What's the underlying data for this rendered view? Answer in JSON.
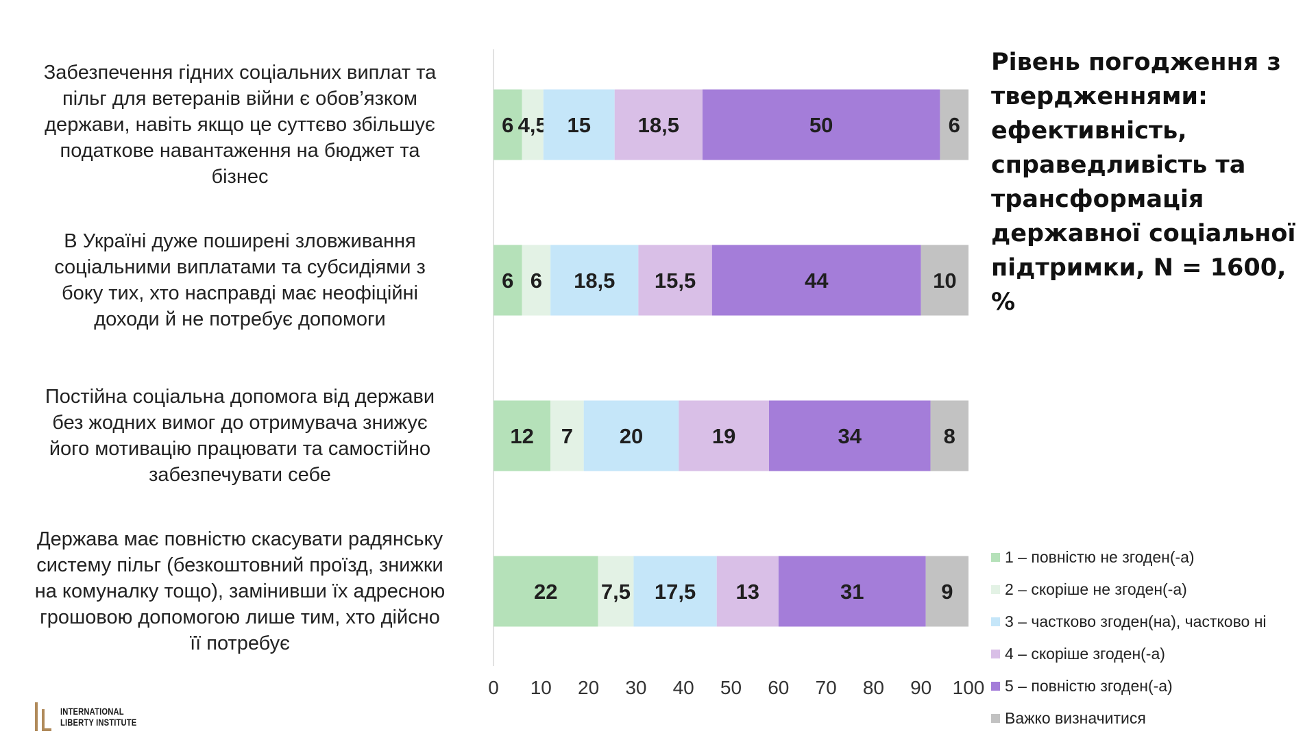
{
  "chart_data": {
    "type": "bar",
    "orientation": "horizontal",
    "stacked": true,
    "title": "Рівень погодження з твердженнями: ефективність, справедливість та трансформація державної соціальної підтримки, N = 1600, %",
    "title_lines": [
      "Рівень погодження з",
      "твердженнями:",
      "ефективність,",
      "справедливість та",
      "трансформація",
      "державної соціальної",
      "підтримки, N = 1600, %"
    ],
    "xlim": [
      0,
      100
    ],
    "xticks": [
      0,
      10,
      20,
      30,
      40,
      50,
      60,
      70,
      80,
      90,
      100
    ],
    "grid": false,
    "legend_position": "bottom-right",
    "categories": [
      "Забезпечення гідних соціальних виплат та пільг для ветеранів війни є обов’язком держави, навіть якщо це суттєво збільшує податкове навантаження на бюджет та бізнес",
      "В Україні дуже поширені зловживання соціальними виплатами та субсидіями з боку тих, хто насправді має неофіційні доходи й не потребує допомоги",
      "Постійна соціальна допомога від держави без жодних вимог до отримувача знижує його мотивацію працювати та самостійно забезпечувати себе",
      "Держава має повністю скасувати радянську систему пільг (безкоштовний проїзд, знижки на комуналку тощо), замінивши їх адресною грошовою допомогою лише тим, хто дійсно її потребує"
    ],
    "category_lines": [
      [
        "Забезпечення гідних соціальних виплат та",
        "пільг для ветеранів війни є обов’язком",
        "держави, навіть якщо це суттєво збільшує",
        "податкове навантаження на бюджет та",
        "бізнес"
      ],
      [
        "В Україні дуже поширені зловживання",
        "соціальними виплатами та субсидіями з",
        "боку тих, хто насправді має неофіційні",
        "доходи й не потребує допомоги"
      ],
      [
        "Постійна соціальна допомога від держави",
        "без жодних вимог до отримувача знижує",
        "його мотивацію працювати та самостійно",
        "забезпечувати себе"
      ],
      [
        "Держава має повністю скасувати радянську",
        "систему пільг (безкоштовний проїзд, знижки",
        "на комуналку тощо), замінивши їх адресною",
        "грошовою допомогою лише тим, хто дійсно",
        "її потребує"
      ]
    ],
    "series": [
      {
        "name": "1 – повністю не згоден(-а)",
        "color": "#b5e1b9",
        "values": [
          6,
          6,
          12,
          22
        ],
        "labels": [
          "6",
          "6",
          "12",
          "22"
        ]
      },
      {
        "name": "2 – скоріше не згоден(-а)",
        "color": "#e3f2e5",
        "values": [
          4.5,
          6,
          7,
          7.5
        ],
        "labels": [
          "4,5",
          "6",
          "7",
          "7,5"
        ]
      },
      {
        "name": "3 – частково згоден(на), частково ні",
        "color": "#c5e6f9",
        "values": [
          15,
          18.5,
          20,
          17.5
        ],
        "labels": [
          "15",
          "18,5",
          "20",
          "17,5"
        ]
      },
      {
        "name": "4 – скоріше згоден(-а)",
        "color": "#d9bfe7",
        "values": [
          18.5,
          15.5,
          19,
          13
        ],
        "labels": [
          "18,5",
          "15,5",
          "19",
          "13"
        ]
      },
      {
        "name": "5 – повністю згоден(-а)",
        "color": "#a47dd9",
        "values": [
          50,
          44,
          34,
          31
        ],
        "labels": [
          "50",
          "44",
          "34",
          "31"
        ]
      },
      {
        "name": "Важко визначитися",
        "color": "#c2c2c2",
        "values": [
          6,
          10,
          8,
          9
        ],
        "labels": [
          "6",
          "10",
          "8",
          "9"
        ]
      }
    ]
  },
  "logo": {
    "line1": "INTERNATIONAL",
    "line2": "LIBERTY INSTITUTE",
    "color": "#b08a5a"
  }
}
